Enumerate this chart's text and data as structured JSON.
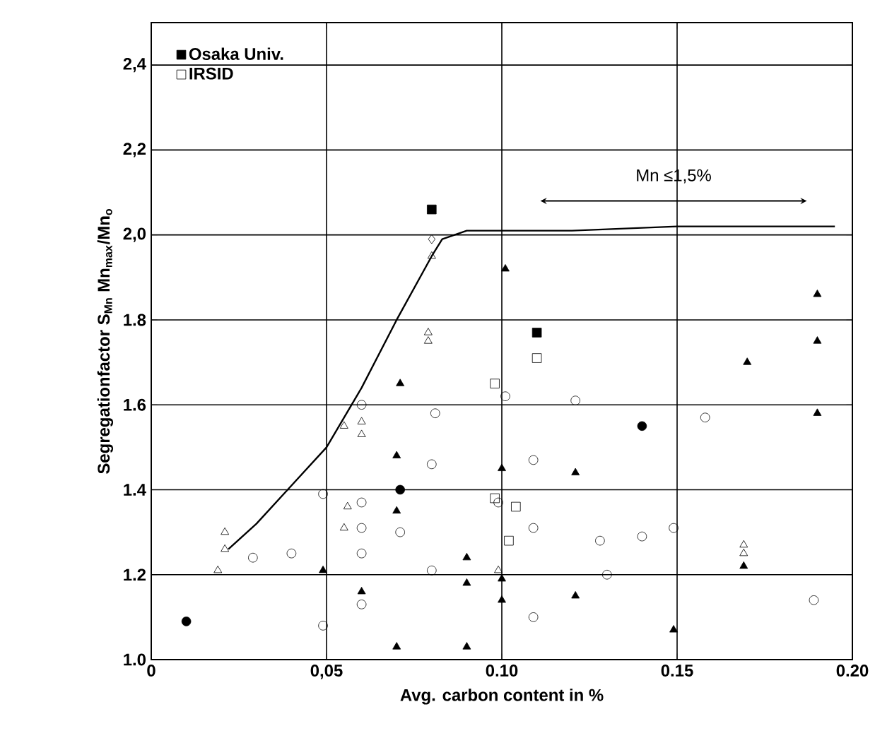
{
  "chart_data": {
    "type": "scatter",
    "xlabel": "Avg. carbon content in %",
    "ylabel": "Segregationfactor  S$_{Mn}$  Mn$_{max}$/Mn$_{o}$",
    "xlim": [
      0,
      0.2
    ],
    "ylim": [
      1.0,
      2.5
    ],
    "xticks": [
      {
        "value": 0,
        "label": "0"
      },
      {
        "value": 0.05,
        "label": "0,05"
      },
      {
        "value": 0.1,
        "label": "0.10"
      },
      {
        "value": 0.15,
        "label": "0.15"
      },
      {
        "value": 0.2,
        "label": "0.20"
      }
    ],
    "yticks": [
      {
        "value": 1.0,
        "label": "1.0"
      },
      {
        "value": 1.2,
        "label": "1.2"
      },
      {
        "value": 1.4,
        "label": "1.4"
      },
      {
        "value": 1.6,
        "label": "1.6"
      },
      {
        "value": 1.8,
        "label": "1.8"
      },
      {
        "value": 2.0,
        "label": "2,0"
      },
      {
        "value": 2.2,
        "label": "2,2"
      },
      {
        "value": 2.4,
        "label": "2,4"
      }
    ],
    "grid": true,
    "legend": "top left",
    "annotations": [
      "Mn ≤1,5%"
    ],
    "series": [
      {
        "color": "#000000",
        "marker": "circle",
        "x": [
          0.01,
          0.071,
          0.14
        ],
        "values": [
          1.09,
          1.4,
          1.55
        ]
      },
      {
        "color": "#000000",
        "marker": "diamond",
        "x": [
          0.08
        ],
        "values": [
          1.99
        ]
      },
      {
        "name": "Osaka Univ.",
        "color": "#000000",
        "marker": "square",
        "x": [
          0.08,
          0.11
        ],
        "values": [
          2.06,
          1.77
        ]
      },
      {
        "name": "IRSID",
        "color": "#000000",
        "marker": "square",
        "x": [
          0.11,
          0.098,
          0.098,
          0.104,
          0.102
        ],
        "values": [
          1.71,
          1.65,
          1.38,
          1.36,
          1.28
        ]
      },
      {
        "color": "#000000",
        "marker": "triangle",
        "x": [
          0.071,
          0.07,
          0.07,
          0.049,
          0.07,
          0.06,
          0.101,
          0.19,
          0.19,
          0.17,
          0.19,
          0.1,
          0.121,
          0.09,
          0.09,
          0.1,
          0.1,
          0.121,
          0.09,
          0.149,
          0.169
        ],
        "values": [
          1.65,
          1.48,
          1.35,
          1.21,
          1.03,
          1.16,
          1.92,
          1.86,
          1.75,
          1.7,
          1.58,
          1.45,
          1.44,
          1.24,
          1.18,
          1.19,
          1.14,
          1.15,
          1.03,
          1.07,
          1.22
        ]
      },
      {
        "color": "#000000",
        "marker": "circle",
        "x": [
          0.029,
          0.04,
          0.049,
          0.049,
          0.06,
          0.06,
          0.06,
          0.06,
          0.06,
          0.071,
          0.081,
          0.08,
          0.08,
          0.101,
          0.121,
          0.158,
          0.109,
          0.099,
          0.109,
          0.128,
          0.14,
          0.149,
          0.13,
          0.109,
          0.189
        ],
        "values": [
          1.24,
          1.25,
          1.39,
          1.08,
          1.6,
          1.37,
          1.31,
          1.25,
          1.13,
          1.3,
          1.58,
          1.46,
          1.21,
          1.62,
          1.61,
          1.57,
          1.47,
          1.37,
          1.31,
          1.28,
          1.29,
          1.31,
          1.2,
          1.1,
          1.14
        ]
      },
      {
        "color": "#000000",
        "marker": "triangle",
        "x": [
          0.021,
          0.021,
          0.019,
          0.055,
          0.06,
          0.06,
          0.056,
          0.055,
          0.08,
          0.079,
          0.079,
          0.099,
          0.169,
          0.169
        ],
        "values": [
          1.3,
          1.26,
          1.21,
          1.55,
          1.56,
          1.53,
          1.36,
          1.31,
          1.95,
          1.77,
          1.75,
          1.21,
          1.27,
          1.25
        ]
      },
      {
        "type": "line",
        "color": "#000000",
        "marker": "none",
        "line_style": "solid",
        "x": [
          0.022,
          0.03,
          0.04,
          0.05,
          0.06,
          0.07,
          0.08,
          0.083,
          0.09,
          0.12,
          0.15,
          0.195
        ],
        "values": [
          1.26,
          1.32,
          1.41,
          1.5,
          1.64,
          1.8,
          1.95,
          1.99,
          2.01,
          2.01,
          2.02,
          2.02
        ]
      }
    ]
  }
}
